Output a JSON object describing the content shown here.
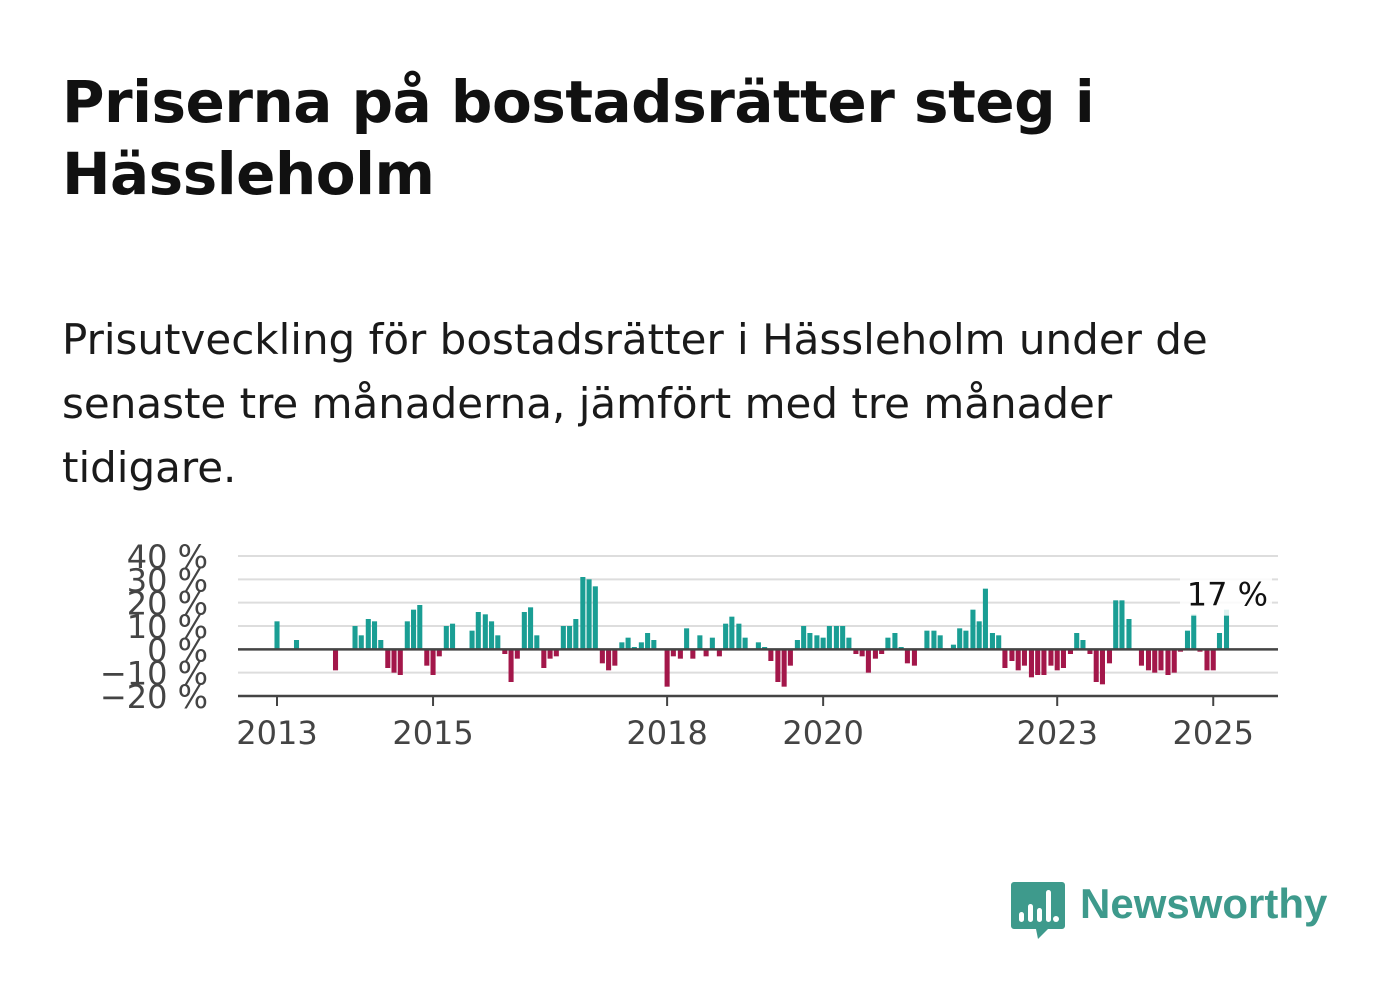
{
  "header": {
    "title": "Priserna på bostadsrätter steg i Hässleholm",
    "subtitle": "Prisutveckling för bostadsrätter i Hässleholm under de senaste tre månaderna, jämfört med tre månader tidigare."
  },
  "brand": {
    "name": "Newsworthy",
    "color": "#3e9a8c",
    "icon": "newsworthy-chat-bars-icon"
  },
  "colors": {
    "positive": "#1a9e94",
    "negative": "#a3174a",
    "grid": "#dddddd",
    "axis": "#444444"
  },
  "chart_data": {
    "type": "bar",
    "title": "",
    "xlabel": "",
    "ylabel": "",
    "ylim": [
      -20,
      40
    ],
    "yticks": [
      -20,
      -10,
      0,
      10,
      20,
      30,
      40
    ],
    "ytick_labels": [
      "−20 %",
      "−10 %",
      "0 %",
      "10 %",
      "20 %",
      "30 %",
      "40 %"
    ],
    "xlim": [
      2012.5,
      2025.83
    ],
    "xticks": [
      2013,
      2015,
      2018,
      2020,
      2023,
      2025
    ],
    "xtick_labels": [
      "2013",
      "2015",
      "2018",
      "2020",
      "2023",
      "2025"
    ],
    "grid": true,
    "last_value_label": "17 %",
    "series": [
      {
        "values": [
          [
            2013.0,
            12
          ],
          [
            2013.25,
            4
          ],
          [
            2013.75,
            -9
          ],
          [
            2014.0,
            10
          ],
          [
            2014.08,
            6
          ],
          [
            2014.17,
            13
          ],
          [
            2014.25,
            12
          ],
          [
            2014.33,
            4
          ],
          [
            2014.42,
            -8
          ],
          [
            2014.5,
            -10
          ],
          [
            2014.58,
            -11
          ],
          [
            2014.67,
            12
          ],
          [
            2014.75,
            17
          ],
          [
            2014.83,
            19
          ],
          [
            2014.92,
            -7
          ],
          [
            2015.0,
            -11
          ],
          [
            2015.08,
            -3
          ],
          [
            2015.17,
            10
          ],
          [
            2015.25,
            11
          ],
          [
            2015.5,
            8
          ],
          [
            2015.58,
            16
          ],
          [
            2015.67,
            15
          ],
          [
            2015.75,
            12
          ],
          [
            2015.83,
            6
          ],
          [
            2015.92,
            -2
          ],
          [
            2016.0,
            -14
          ],
          [
            2016.08,
            -4
          ],
          [
            2016.17,
            16
          ],
          [
            2016.25,
            18
          ],
          [
            2016.33,
            6
          ],
          [
            2016.42,
            -8
          ],
          [
            2016.5,
            -4
          ],
          [
            2016.58,
            -3
          ],
          [
            2016.67,
            10
          ],
          [
            2016.75,
            10
          ],
          [
            2016.83,
            13
          ],
          [
            2016.92,
            31
          ],
          [
            2017.0,
            30
          ],
          [
            2017.08,
            27
          ],
          [
            2017.17,
            -6
          ],
          [
            2017.25,
            -9
          ],
          [
            2017.33,
            -7
          ],
          [
            2017.42,
            3
          ],
          [
            2017.5,
            5
          ],
          [
            2017.58,
            1
          ],
          [
            2017.67,
            3
          ],
          [
            2017.75,
            7
          ],
          [
            2017.83,
            4
          ],
          [
            2018.0,
            -16
          ],
          [
            2018.08,
            -3
          ],
          [
            2018.17,
            -4
          ],
          [
            2018.25,
            9
          ],
          [
            2018.33,
            -4
          ],
          [
            2018.42,
            6
          ],
          [
            2018.5,
            -3
          ],
          [
            2018.58,
            5
          ],
          [
            2018.67,
            -3
          ],
          [
            2018.75,
            11
          ],
          [
            2018.83,
            14
          ],
          [
            2018.92,
            11
          ],
          [
            2019.0,
            5
          ],
          [
            2019.17,
            3
          ],
          [
            2019.25,
            1
          ],
          [
            2019.33,
            -5
          ],
          [
            2019.42,
            -14
          ],
          [
            2019.5,
            -16
          ],
          [
            2019.58,
            -7
          ],
          [
            2019.67,
            4
          ],
          [
            2019.75,
            10
          ],
          [
            2019.83,
            7
          ],
          [
            2019.92,
            6
          ],
          [
            2020.0,
            5
          ],
          [
            2020.08,
            10
          ],
          [
            2020.17,
            10
          ],
          [
            2020.25,
            10
          ],
          [
            2020.33,
            5
          ],
          [
            2020.42,
            -2
          ],
          [
            2020.5,
            -3
          ],
          [
            2020.58,
            -10
          ],
          [
            2020.67,
            -4
          ],
          [
            2020.75,
            -2
          ],
          [
            2020.83,
            5
          ],
          [
            2020.92,
            7
          ],
          [
            2021.0,
            1
          ],
          [
            2021.08,
            -6
          ],
          [
            2021.17,
            -7
          ],
          [
            2021.33,
            8
          ],
          [
            2021.42,
            8
          ],
          [
            2021.5,
            6
          ],
          [
            2021.67,
            2
          ],
          [
            2021.75,
            9
          ],
          [
            2021.83,
            8
          ],
          [
            2021.92,
            17
          ],
          [
            2022.0,
            12
          ],
          [
            2022.08,
            26
          ],
          [
            2022.17,
            7
          ],
          [
            2022.25,
            6
          ],
          [
            2022.33,
            -8
          ],
          [
            2022.42,
            -5
          ],
          [
            2022.5,
            -9
          ],
          [
            2022.58,
            -7
          ],
          [
            2022.67,
            -12
          ],
          [
            2022.75,
            -11
          ],
          [
            2022.83,
            -11
          ],
          [
            2022.92,
            -7
          ],
          [
            2023.0,
            -9
          ],
          [
            2023.08,
            -8
          ],
          [
            2023.17,
            -2
          ],
          [
            2023.25,
            7
          ],
          [
            2023.33,
            4
          ],
          [
            2023.42,
            -2
          ],
          [
            2023.5,
            -14
          ],
          [
            2023.58,
            -15
          ],
          [
            2023.67,
            -6
          ],
          [
            2023.75,
            21
          ],
          [
            2023.83,
            21
          ],
          [
            2023.92,
            13
          ],
          [
            2024.08,
            -7
          ],
          [
            2024.17,
            -9
          ],
          [
            2024.25,
            -10
          ],
          [
            2024.33,
            -9
          ],
          [
            2024.42,
            -11
          ],
          [
            2024.5,
            -10
          ],
          [
            2024.58,
            -1
          ],
          [
            2024.67,
            8
          ],
          [
            2024.75,
            15
          ],
          [
            2024.83,
            -1
          ],
          [
            2024.92,
            -9
          ],
          [
            2025.0,
            -9
          ],
          [
            2025.08,
            7
          ],
          [
            2025.17,
            17
          ]
        ]
      }
    ]
  }
}
